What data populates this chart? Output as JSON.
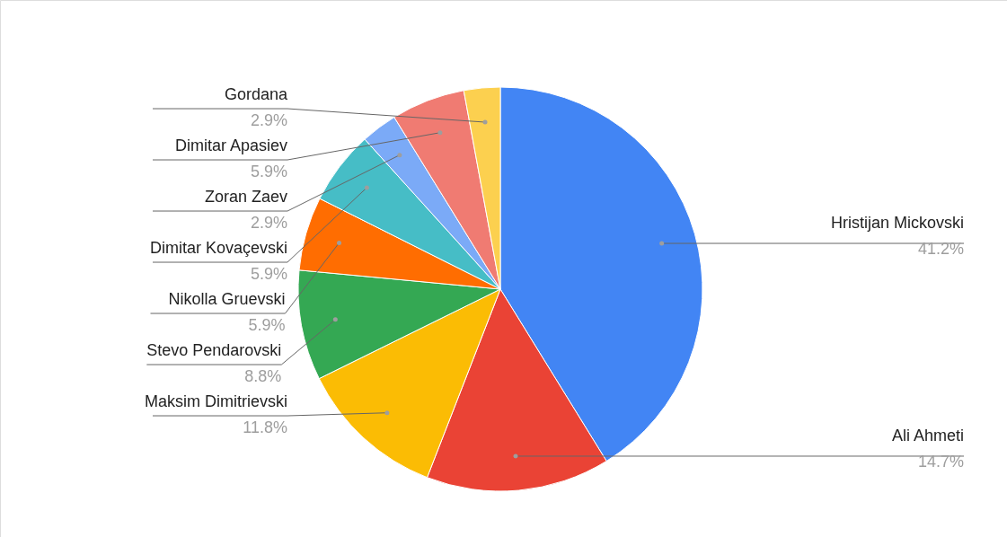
{
  "chart_data": {
    "type": "pie",
    "categories": [
      "Hristijan Mickovski",
      "Ali Ahmeti",
      "Maksim Dimitrievski",
      "Stevo Pendarovski",
      "Nikolla Gruevski",
      "Dimitar Kovaçevski",
      "Zoran Zaev",
      "Dimitar Apasiev",
      "Gordana"
    ],
    "values": [
      41.2,
      14.7,
      11.8,
      8.8,
      5.9,
      5.9,
      2.9,
      5.9,
      2.9
    ],
    "value_labels": [
      "41.2%",
      "14.7%",
      "11.8%",
      "8.8%",
      "5.9%",
      "5.9%",
      "2.9%",
      "5.9%",
      "2.9%"
    ],
    "colors": [
      "#4285f4",
      "#ea4335",
      "#fbbc04",
      "#34a853",
      "#ff6d01",
      "#46bdc6",
      "#7baaf7",
      "#f07b72",
      "#fcd04f"
    ]
  }
}
